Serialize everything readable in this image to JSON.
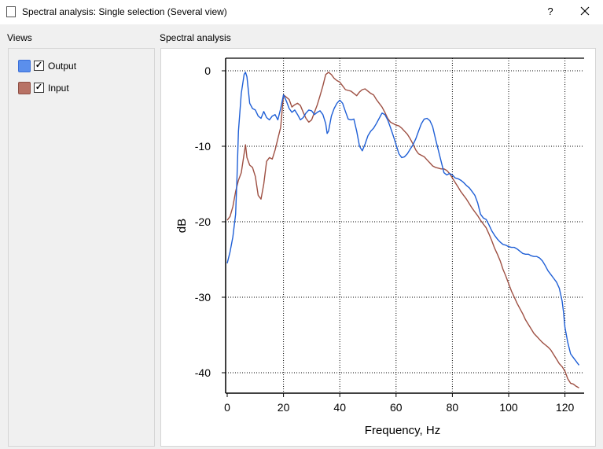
{
  "window": {
    "title": "Spectral analysis: Single selection (Several view)",
    "help_label": "?"
  },
  "views": {
    "label": "Views",
    "items": [
      {
        "name": "Output",
        "color": "#3a6fd8",
        "checked": true
      },
      {
        "name": "Input",
        "color": "#a85a4c",
        "checked": true
      }
    ]
  },
  "chart_panel": {
    "label": "Spectral analysis"
  },
  "chart_data": {
    "type": "line",
    "xlabel": "Frequency, Hz",
    "ylabel": "dB",
    "xlim": [
      0,
      125
    ],
    "ylim": [
      -42,
      1.5
    ],
    "xticks": [
      0,
      20,
      40,
      60,
      80,
      100,
      120
    ],
    "yticks": [
      0,
      -10,
      -20,
      -30,
      -40
    ],
    "grid": "dotted",
    "series": [
      {
        "name": "Output",
        "color": "#1f5fd6",
        "points": [
          [
            0,
            -25.5
          ],
          [
            1,
            -24
          ],
          [
            2,
            -22
          ],
          [
            3,
            -19
          ],
          [
            3.5,
            -14
          ],
          [
            4,
            -8
          ],
          [
            5,
            -3
          ],
          [
            6,
            -0.5
          ],
          [
            6.5,
            -0.2
          ],
          [
            7,
            -0.8
          ],
          [
            7.5,
            -2.5
          ],
          [
            8,
            -4.3
          ],
          [
            9,
            -5
          ],
          [
            10,
            -5.2
          ],
          [
            11,
            -6
          ],
          [
            12,
            -6.3
          ],
          [
            13,
            -5.4
          ],
          [
            14,
            -6.2
          ],
          [
            15,
            -6.5
          ],
          [
            16,
            -6
          ],
          [
            17,
            -5.8
          ],
          [
            18,
            -6.5
          ],
          [
            19,
            -5
          ],
          [
            20,
            -3.2
          ],
          [
            21,
            -4
          ],
          [
            22,
            -5
          ],
          [
            23,
            -5.5
          ],
          [
            24,
            -5.2
          ],
          [
            25,
            -5.8
          ],
          [
            26,
            -6.5
          ],
          [
            27,
            -6.2
          ],
          [
            28,
            -5.6
          ],
          [
            29,
            -5.2
          ],
          [
            30,
            -5.3
          ],
          [
            31,
            -5.8
          ],
          [
            32,
            -5.5
          ],
          [
            33,
            -5.3
          ],
          [
            34,
            -5.8
          ],
          [
            35,
            -7
          ],
          [
            35.5,
            -8.3
          ],
          [
            36,
            -8
          ],
          [
            37,
            -6
          ],
          [
            38,
            -5
          ],
          [
            39,
            -4.3
          ],
          [
            40,
            -3.9
          ],
          [
            41,
            -4.3
          ],
          [
            42,
            -5.4
          ],
          [
            43,
            -6.4
          ],
          [
            44,
            -6.5
          ],
          [
            45,
            -6.4
          ],
          [
            46,
            -8
          ],
          [
            47,
            -10
          ],
          [
            48,
            -10.6
          ],
          [
            49,
            -9.7
          ],
          [
            50,
            -8.6
          ],
          [
            51,
            -8
          ],
          [
            52,
            -7.6
          ],
          [
            53,
            -7
          ],
          [
            54,
            -6.3
          ],
          [
            55,
            -5.6
          ],
          [
            56,
            -5.8
          ],
          [
            57,
            -6.5
          ],
          [
            58,
            -7.5
          ],
          [
            59,
            -8.6
          ],
          [
            60,
            -9.8
          ],
          [
            61,
            -11
          ],
          [
            62,
            -11.5
          ],
          [
            63,
            -11.4
          ],
          [
            64,
            -11
          ],
          [
            65,
            -10.4
          ],
          [
            66,
            -9.8
          ],
          [
            67,
            -9
          ],
          [
            68,
            -8
          ],
          [
            69,
            -7
          ],
          [
            70,
            -6.4
          ],
          [
            71,
            -6.3
          ],
          [
            72,
            -6.6
          ],
          [
            73,
            -7.4
          ],
          [
            74,
            -9
          ],
          [
            75,
            -10.5
          ],
          [
            76,
            -12
          ],
          [
            77,
            -13.5
          ],
          [
            78,
            -13.8
          ],
          [
            79,
            -13.6
          ],
          [
            80,
            -13.8
          ],
          [
            81,
            -14.2
          ],
          [
            82,
            -14.3
          ],
          [
            83,
            -14.5
          ],
          [
            84,
            -14.8
          ],
          [
            85,
            -15.2
          ],
          [
            86,
            -15.5
          ],
          [
            87,
            -16
          ],
          [
            88,
            -16.5
          ],
          [
            89,
            -17.5
          ],
          [
            90,
            -19
          ],
          [
            91,
            -19.5
          ],
          [
            92,
            -19.7
          ],
          [
            93,
            -20.4
          ],
          [
            94,
            -21.2
          ],
          [
            95,
            -21.8
          ],
          [
            96,
            -22.3
          ],
          [
            97,
            -22.7
          ],
          [
            98,
            -23
          ],
          [
            99,
            -23.1
          ],
          [
            100,
            -23.3
          ],
          [
            101,
            -23.4
          ],
          [
            102,
            -23.4
          ],
          [
            103,
            -23.6
          ],
          [
            104,
            -23.9
          ],
          [
            105,
            -24.2
          ],
          [
            106,
            -24.3
          ],
          [
            107,
            -24.3
          ],
          [
            108,
            -24.5
          ],
          [
            109,
            -24.6
          ],
          [
            110,
            -24.6
          ],
          [
            111,
            -24.8
          ],
          [
            112,
            -25.2
          ],
          [
            113,
            -25.8
          ],
          [
            114,
            -26.5
          ],
          [
            115,
            -27
          ],
          [
            116,
            -27.5
          ],
          [
            117,
            -28
          ],
          [
            118,
            -28.8
          ],
          [
            119,
            -30.5
          ],
          [
            119.5,
            -32
          ],
          [
            120,
            -34
          ],
          [
            121,
            -36
          ],
          [
            122,
            -37.5
          ],
          [
            123,
            -38
          ],
          [
            124,
            -38.5
          ],
          [
            125,
            -39
          ]
        ]
      },
      {
        "name": "Input",
        "color": "#9e5043",
        "points": [
          [
            0,
            -19.8
          ],
          [
            1,
            -19.3
          ],
          [
            2,
            -18
          ],
          [
            3,
            -16
          ],
          [
            4,
            -14.5
          ],
          [
            5,
            -13.5
          ],
          [
            6,
            -11
          ],
          [
            6.5,
            -9.8
          ],
          [
            7,
            -11.5
          ],
          [
            8,
            -12.5
          ],
          [
            9,
            -12.8
          ],
          [
            10,
            -14
          ],
          [
            11,
            -16.5
          ],
          [
            12,
            -17
          ],
          [
            13,
            -15
          ],
          [
            14,
            -12
          ],
          [
            15,
            -11.5
          ],
          [
            16,
            -11.7
          ],
          [
            17,
            -10.5
          ],
          [
            18,
            -9
          ],
          [
            19,
            -7.5
          ],
          [
            20,
            -3.2
          ],
          [
            21,
            -3.5
          ],
          [
            22,
            -3.8
          ],
          [
            23,
            -4.8
          ],
          [
            24,
            -4.5
          ],
          [
            25,
            -4.3
          ],
          [
            26,
            -4.6
          ],
          [
            27,
            -5.5
          ],
          [
            28,
            -6.3
          ],
          [
            29,
            -6.8
          ],
          [
            30,
            -6.5
          ],
          [
            31,
            -5.5
          ],
          [
            32,
            -4.5
          ],
          [
            33,
            -3.3
          ],
          [
            34,
            -2
          ],
          [
            35,
            -0.5
          ],
          [
            36,
            -0.2
          ],
          [
            37,
            -0.5
          ],
          [
            38,
            -1
          ],
          [
            39,
            -1.3
          ],
          [
            40,
            -1.5
          ],
          [
            41,
            -2
          ],
          [
            42,
            -2.5
          ],
          [
            43,
            -2.6
          ],
          [
            44,
            -2.7
          ],
          [
            45,
            -3
          ],
          [
            46,
            -3.3
          ],
          [
            47,
            -2.8
          ],
          [
            48,
            -2.5
          ],
          [
            49,
            -2.4
          ],
          [
            50,
            -2.7
          ],
          [
            51,
            -3
          ],
          [
            52,
            -3.2
          ],
          [
            53,
            -3.8
          ],
          [
            54,
            -4.3
          ],
          [
            55,
            -4.8
          ],
          [
            56,
            -5.5
          ],
          [
            57,
            -6.3
          ],
          [
            58,
            -6.8
          ],
          [
            59,
            -7
          ],
          [
            60,
            -7.2
          ],
          [
            61,
            -7.3
          ],
          [
            62,
            -7.6
          ],
          [
            63,
            -8
          ],
          [
            64,
            -8.4
          ],
          [
            65,
            -9
          ],
          [
            66,
            -9.7
          ],
          [
            67,
            -10.5
          ],
          [
            68,
            -11
          ],
          [
            69,
            -11.2
          ],
          [
            70,
            -11.4
          ],
          [
            71,
            -11.8
          ],
          [
            72,
            -12.2
          ],
          [
            73,
            -12.6
          ],
          [
            74,
            -12.8
          ],
          [
            75,
            -12.9
          ],
          [
            76,
            -13
          ],
          [
            77,
            -13
          ],
          [
            78,
            -13.2
          ],
          [
            79,
            -13.6
          ],
          [
            80,
            -14.2
          ],
          [
            81,
            -14.8
          ],
          [
            82,
            -15.4
          ],
          [
            83,
            -16
          ],
          [
            84,
            -16.5
          ],
          [
            85,
            -17
          ],
          [
            86,
            -17.6
          ],
          [
            87,
            -18.2
          ],
          [
            88,
            -18.7
          ],
          [
            89,
            -19.2
          ],
          [
            90,
            -19.8
          ],
          [
            91,
            -20.3
          ],
          [
            92,
            -20.8
          ],
          [
            93,
            -21.6
          ],
          [
            94,
            -22.5
          ],
          [
            95,
            -23.5
          ],
          [
            96,
            -24.3
          ],
          [
            97,
            -25.2
          ],
          [
            98,
            -26.3
          ],
          [
            99,
            -27.2
          ],
          [
            100,
            -28.2
          ],
          [
            101,
            -29.2
          ],
          [
            102,
            -30
          ],
          [
            103,
            -30.8
          ],
          [
            104,
            -31.5
          ],
          [
            105,
            -32.2
          ],
          [
            106,
            -33
          ],
          [
            107,
            -33.6
          ],
          [
            108,
            -34.2
          ],
          [
            109,
            -34.8
          ],
          [
            110,
            -35.2
          ],
          [
            111,
            -35.6
          ],
          [
            112,
            -36
          ],
          [
            113,
            -36.3
          ],
          [
            114,
            -36.6
          ],
          [
            115,
            -37
          ],
          [
            116,
            -37.6
          ],
          [
            117,
            -38.2
          ],
          [
            118,
            -38.8
          ],
          [
            119,
            -39.2
          ],
          [
            120,
            -39.8
          ],
          [
            121,
            -40.8
          ],
          [
            122,
            -41.4
          ],
          [
            123,
            -41.5
          ],
          [
            124,
            -41.8
          ],
          [
            125,
            -42
          ]
        ]
      }
    ]
  }
}
